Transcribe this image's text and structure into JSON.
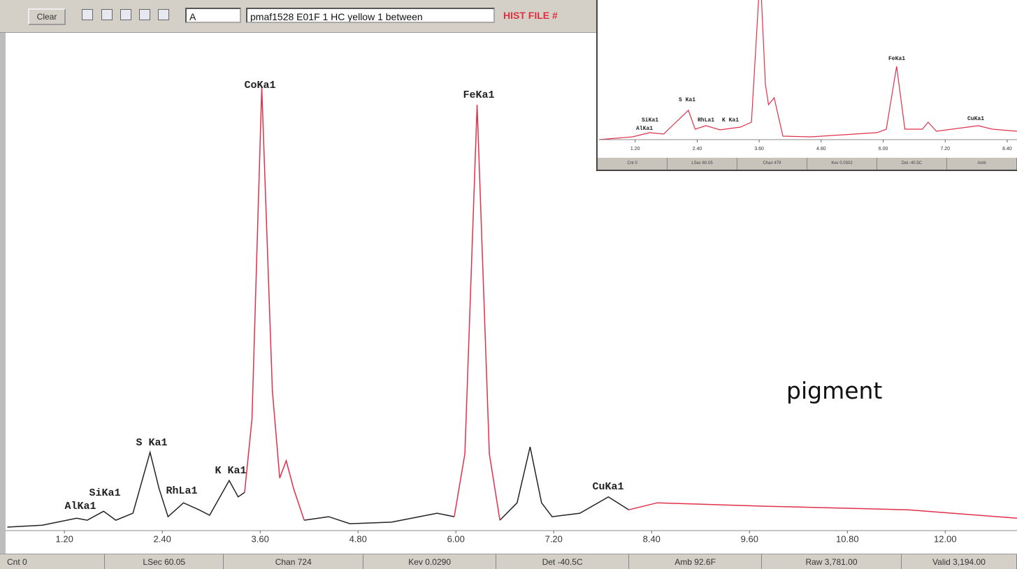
{
  "toolbar": {
    "button": "Clear",
    "dropdown": "A",
    "file_field": "pmaf1528 E01F 1 HC yellow 1 between",
    "status": "HIST FILE #"
  },
  "chart_data": [
    {
      "type": "line",
      "annotations": [
        "AlKa1",
        "SiKa1",
        "S Ka1",
        "RhLa1",
        "K Ka1",
        "CoKa1",
        "FeKa1",
        "CuKa1"
      ],
      "x": [
        0.5,
        0.93,
        1.35,
        1.48,
        1.68,
        1.83,
        2.04,
        2.25,
        2.36,
        2.47,
        2.66,
        2.85,
        2.98,
        3.22,
        3.33,
        3.41,
        3.5,
        3.62,
        3.75,
        3.84,
        3.92,
        4.01,
        4.14,
        4.44,
        4.7,
        5.21,
        5.77,
        5.98,
        6.11,
        6.26,
        6.41,
        6.54,
        6.75,
        6.91,
        7.05,
        7.18,
        7.52,
        7.87,
        8.12,
        8.47,
        9.84,
        11.55,
        12.88
      ],
      "series": [
        {
          "color": "#222222",
          "values": [
            0.7,
            1.1,
            2.5,
            2.1,
            3.9,
            2.1,
            3.5,
            15.8,
            8.5,
            2.8,
            5.6,
            4.2,
            3.1,
            10.1,
            6.8,
            7.7,
            null,
            null,
            null,
            null,
            null,
            null,
            2.1,
            2.8,
            1.4,
            1.7,
            3.5,
            2.8,
            null,
            null,
            null,
            2.1,
            5.6,
            16.9,
            5.6,
            2.8,
            3.5,
            6.8,
            4.2,
            null,
            null,
            null,
            null
          ]
        },
        {
          "color": "#e0304a",
          "values": [
            null,
            null,
            null,
            null,
            null,
            null,
            null,
            null,
            null,
            null,
            null,
            null,
            null,
            null,
            null,
            7.7,
            22.5,
            89.4,
            28.2,
            10.6,
            14.1,
            8.5,
            2.1,
            null,
            null,
            null,
            null,
            2.8,
            15.5,
            85.9,
            15.5,
            2.1,
            null,
            null,
            null,
            null,
            null,
            null,
            4.2,
            5.6,
            4.9,
            4.2,
            2.5
          ]
        }
      ],
      "xlim": [
        0.41,
        12.88
      ],
      "ylim": [
        0,
        100
      ],
      "xticks": [
        {
          "value": 1.2,
          "label": "1.20"
        },
        {
          "value": 2.4,
          "label": "2.40"
        },
        {
          "value": 3.6,
          "label": "3.60"
        },
        {
          "value": 4.8,
          "label": "4.80"
        },
        {
          "value": 6,
          "label": "6.00"
        },
        {
          "value": 7.2,
          "label": "7.20"
        },
        {
          "value": 8.4,
          "label": "8.40"
        },
        {
          "value": 9.6,
          "label": "9.60"
        },
        {
          "value": 10.8,
          "label": "10.80"
        },
        {
          "value": 12,
          "label": "12.00"
        }
      ]
    },
    {
      "type": "line",
      "annotations": [
        "AlKa1",
        "SiKa1",
        "S Ka1",
        "RhLa1",
        "K Ka1",
        "FeKa1",
        "CuKa1"
      ],
      "x": [
        0.5,
        1.15,
        1.48,
        1.75,
        2.23,
        2.36,
        2.57,
        2.84,
        3.24,
        3.45,
        3.62,
        3.72,
        3.78,
        3.89,
        4.06,
        4.6,
        5.88,
        6.06,
        6.26,
        6.42,
        6.76,
        6.87,
        7.03,
        7.84,
        8.11,
        8.59
      ],
      "series": [
        {
          "color": "#e0304a",
          "values": [
            0,
            2,
            5,
            4,
            21,
            7.5,
            10,
            7,
            9,
            12.5,
            120,
            40,
            25,
            30,
            2.5,
            2,
            5,
            7.5,
            52.5,
            7.5,
            7.5,
            12.5,
            6,
            10,
            7.5,
            6
          ]
        }
      ],
      "xlim": [
        0.5,
        8.59
      ],
      "ylim": [
        0,
        100
      ],
      "xticks": [
        {
          "value": 1.2,
          "label": "1.20"
        },
        {
          "value": 2.4,
          "label": "2.40"
        },
        {
          "value": 3.6,
          "label": "3.60"
        },
        {
          "value": 4.8,
          "label": "4.80"
        },
        {
          "value": 6,
          "label": "6.00"
        },
        {
          "value": 7.2,
          "label": "7.20"
        },
        {
          "value": 8.4,
          "label": "8.40"
        }
      ]
    }
  ],
  "status_bar": [
    "Cnt 0",
    "LSec 60.05",
    "Chan 724",
    "Kev 0.0290",
    "Det -40.5C",
    "Amb 92.6F",
    "Raw 3,781.00",
    "Valid 3,194.00"
  ],
  "inset_status_bar": [
    "Cnt 0",
    "LSec 60.05",
    "Chan 479",
    "Kev 0.0302",
    "Det -40.5C",
    "Amb"
  ],
  "caption": "pigment"
}
